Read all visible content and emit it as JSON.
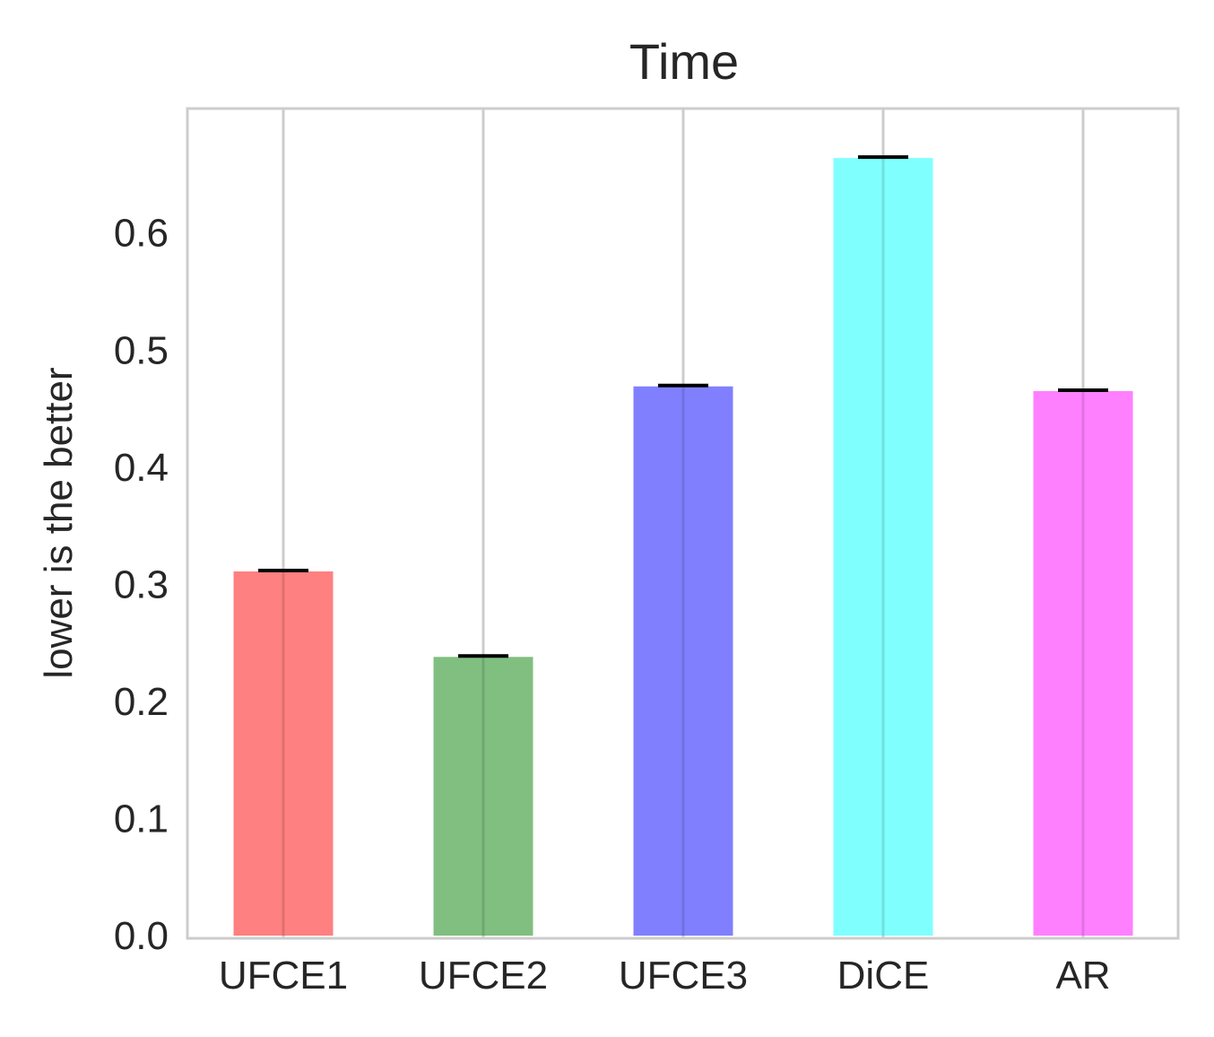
{
  "chart_data": {
    "type": "bar",
    "title": "Time",
    "xlabel": "",
    "ylabel": "lower is the better",
    "categories": [
      "UFCE1",
      "UFCE2",
      "UFCE3",
      "DiCE",
      "AR"
    ],
    "values": [
      0.311,
      0.238,
      0.469,
      0.664,
      0.465
    ],
    "colors": [
      "#ff8080",
      "#80bf80",
      "#8080ff",
      "#80ffff",
      "#ff80ff"
    ],
    "ylim": [
      0,
      0.695
    ],
    "yticks": [
      "0.0",
      "0.1",
      "0.2",
      "0.3",
      "0.4",
      "0.5",
      "0.6"
    ],
    "grid": "vertical",
    "legend": "none"
  }
}
